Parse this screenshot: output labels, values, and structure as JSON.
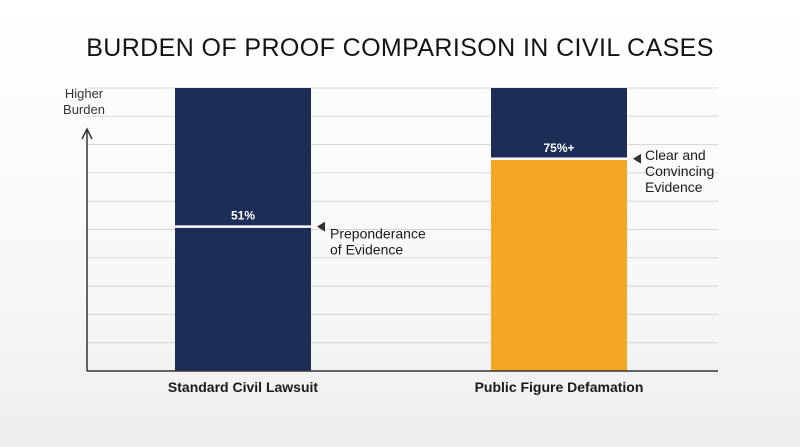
{
  "chart_data": {
    "type": "bar",
    "title": "BURDEN OF PROOF COMPARISON IN CIVIL CASES",
    "ylabel": [
      "Higher",
      "Burden"
    ],
    "xlabel": "",
    "ylim": [
      0,
      100
    ],
    "grid": true,
    "categories": [
      "Standard Civil Lawsuit",
      "Public Figure Defamation"
    ],
    "values": [
      51,
      75
    ],
    "value_labels": [
      "51%",
      "75%+"
    ],
    "annotations": [
      [
        "Preponderance",
        "of Evidence"
      ],
      [
        "Clear and",
        "Convincing",
        "Evidence"
      ]
    ],
    "colors": {
      "bar_fill": "#1c2e58",
      "highlight": "#f5a622",
      "threshold_line": "#ffffff",
      "grid": "#d6d6d6",
      "axis": "#333333"
    }
  }
}
